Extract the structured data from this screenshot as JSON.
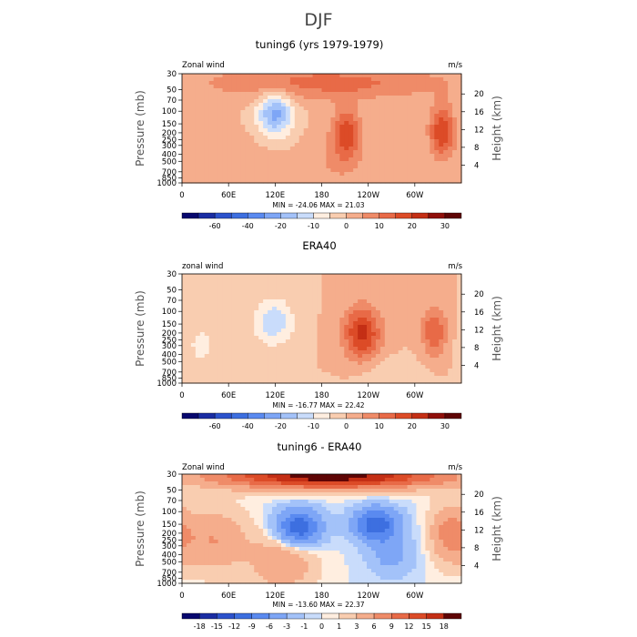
{
  "figure": {
    "title": "DJF"
  },
  "chart_data": [
    {
      "type": "heatmap",
      "title": "tuning6 (yrs 1979-1979)",
      "left_label": "Zonal wind",
      "right_label": "m/s",
      "xlabel": "",
      "ylabel": "Pressure (mb)",
      "ylabel_right": "Height (km)",
      "x_ticks": [
        "0",
        "60E",
        "120E",
        "180",
        "120W",
        "60W"
      ],
      "x_tick_lon": [
        0,
        60,
        120,
        180,
        240,
        300
      ],
      "xlim": [
        0,
        360
      ],
      "y_ticks": [
        "30",
        "50",
        "70",
        "100",
        "150",
        "200",
        "250",
        "300",
        "400",
        "500",
        "700",
        "850",
        "1000"
      ],
      "y_tick_hpa": [
        30,
        50,
        70,
        100,
        150,
        200,
        250,
        300,
        400,
        500,
        700,
        850,
        1000
      ],
      "ylim": [
        1000,
        30
      ],
      "y_right_ticks": [
        "20",
        "16",
        "12",
        "8",
        "4"
      ],
      "y_right_km": [
        20,
        16,
        12,
        8,
        4
      ],
      "stats": "MIN = -24.06   MAX =  21.03",
      "min": -24.06,
      "max": 21.03,
      "colorbar": {
        "labels": [
          "-60",
          "-40",
          "-20",
          "-10",
          "0",
          "10",
          "20",
          "30"
        ],
        "boundaries": [
          -70,
          -60,
          -50,
          -40,
          -30,
          -20,
          -15,
          -10,
          -5,
          0,
          5,
          10,
          15,
          20,
          25,
          30
        ],
        "labeled": [
          -60,
          -40,
          -20,
          -10,
          0,
          10,
          20,
          30
        ],
        "colors": [
          "#08086e",
          "#1a2da3",
          "#2c52cc",
          "#3d6fe0",
          "#5a8af0",
          "#7ea6f6",
          "#a3c2f9",
          "#c9dcfb",
          "#ffeee0",
          "#f9cdb0",
          "#f5ad8c",
          "#ef8b68",
          "#e86a47",
          "#dc4b27",
          "#c42f15",
          "#8f0f0a",
          "#5e0505"
        ]
      },
      "features": [
        {
          "lon": 120,
          "hpa": 110,
          "value": -22,
          "spread_lon": 22,
          "spread_lev": 0.7
        },
        {
          "lon": 212,
          "hpa": 200,
          "value": 18,
          "spread_lon": 18,
          "spread_lev": 0.8
        },
        {
          "lon": 335,
          "hpa": 190,
          "value": 20,
          "spread_lon": 16,
          "spread_lev": 0.8
        },
        {
          "lon": 185,
          "hpa": 40,
          "value": 12,
          "spread_lon": 160,
          "spread_lev": 0.55
        },
        {
          "lon": 60,
          "hpa": 600,
          "value": 4,
          "spread_lon": 60,
          "spread_lev": 1.0
        },
        {
          "lon": 200,
          "hpa": 500,
          "value": 5,
          "spread_lon": 40,
          "spread_lev": 0.9
        }
      ]
    },
    {
      "type": "heatmap",
      "title": "ERA40",
      "left_label": "zonal wind",
      "right_label": "m/s",
      "xlabel": "",
      "ylabel": "Pressure (mb)",
      "ylabel_right": "Height (km)",
      "x_ticks": [
        "0",
        "60E",
        "120E",
        "180",
        "120W",
        "60W"
      ],
      "x_tick_lon": [
        0,
        60,
        120,
        180,
        240,
        300
      ],
      "xlim": [
        0,
        360
      ],
      "y_ticks": [
        "30",
        "50",
        "70",
        "100",
        "150",
        "200",
        "250",
        "300",
        "400",
        "500",
        "700",
        "850",
        "1000"
      ],
      "y_tick_hpa": [
        30,
        50,
        70,
        100,
        150,
        200,
        250,
        300,
        400,
        500,
        700,
        850,
        1000
      ],
      "ylim": [
        1000,
        30
      ],
      "y_right_ticks": [
        "20",
        "16",
        "12",
        "8",
        "4"
      ],
      "y_right_km": [
        20,
        16,
        12,
        8,
        4
      ],
      "stats": "MIN = -16.77   MAX =  22.42",
      "min": -16.77,
      "max": 22.42,
      "colorbar": {
        "labels": [
          "-60",
          "-40",
          "-20",
          "-10",
          "0",
          "10",
          "20",
          "30"
        ],
        "boundaries": [
          -70,
          -60,
          -50,
          -40,
          -30,
          -20,
          -15,
          -10,
          -5,
          0,
          5,
          10,
          15,
          20,
          25,
          30
        ],
        "labeled": [
          -60,
          -40,
          -20,
          -10,
          0,
          10,
          20,
          30
        ],
        "colors": [
          "#08086e",
          "#1a2da3",
          "#2c52cc",
          "#3d6fe0",
          "#5a8af0",
          "#7ea6f6",
          "#a3c2f9",
          "#c9dcfb",
          "#ffeee0",
          "#f9cdb0",
          "#f5ad8c",
          "#ef8b68",
          "#e86a47",
          "#dc4b27",
          "#c42f15",
          "#8f0f0a",
          "#5e0505"
        ]
      },
      "features": [
        {
          "lon": 118,
          "hpa": 140,
          "value": -14,
          "spread_lon": 26,
          "spread_lev": 0.75
        },
        {
          "lon": 232,
          "hpa": 200,
          "value": 22,
          "spread_lon": 24,
          "spread_lev": 0.85
        },
        {
          "lon": 325,
          "hpa": 190,
          "value": 15,
          "spread_lon": 16,
          "spread_lev": 0.8
        },
        {
          "lon": 25,
          "hpa": 300,
          "value": -6,
          "spread_lon": 25,
          "spread_lev": 0.9
        },
        {
          "lon": 270,
          "hpa": 800,
          "value": -5,
          "spread_lon": 40,
          "spread_lev": 0.5
        }
      ]
    },
    {
      "type": "heatmap",
      "title": "tuning6 - ERA40",
      "left_label": "Zonal wind",
      "right_label": "m/s",
      "xlabel": "",
      "ylabel": "Pressure (mb)",
      "ylabel_right": "Height (km)",
      "x_ticks": [
        "0",
        "60E",
        "120E",
        "180",
        "120W",
        "60W"
      ],
      "x_tick_lon": [
        0,
        60,
        120,
        180,
        240,
        300
      ],
      "xlim": [
        0,
        360
      ],
      "y_ticks": [
        "30",
        "50",
        "70",
        "100",
        "150",
        "200",
        "250",
        "300",
        "400",
        "500",
        "700",
        "850",
        "1000"
      ],
      "y_tick_hpa": [
        30,
        50,
        70,
        100,
        150,
        200,
        250,
        300,
        400,
        500,
        700,
        850,
        1000
      ],
      "ylim": [
        1000,
        30
      ],
      "y_right_ticks": [
        "20",
        "16",
        "12",
        "8",
        "4"
      ],
      "y_right_km": [
        20,
        16,
        12,
        8,
        4
      ],
      "stats": "MIN = -13.60   MAX =  22.37",
      "min": -13.6,
      "max": 22.37,
      "colorbar": {
        "labels": [
          "-18",
          "-15",
          "-12",
          "-9",
          "-6",
          "-3",
          "-1",
          "0",
          "1",
          "3",
          "6",
          "9",
          "12",
          "15",
          "18"
        ],
        "boundaries": [
          -18,
          -15,
          -12,
          -9,
          -6,
          -3,
          -1,
          0,
          1,
          3,
          6,
          9,
          12,
          15,
          18
        ],
        "labeled": [
          -18,
          -15,
          -12,
          -9,
          -6,
          -3,
          -1,
          0,
          1,
          3,
          6,
          9,
          12,
          15,
          18
        ],
        "colors": [
          "#08086e",
          "#1a2da3",
          "#2c52cc",
          "#3d6fe0",
          "#5a8af0",
          "#7ea6f6",
          "#a3c2f9",
          "#c9dcfb",
          "#ffeee0",
          "#f9cdb0",
          "#f5ad8c",
          "#ef8b68",
          "#e86a47",
          "#dc4b27",
          "#c42f15",
          "#5e0505"
        ]
      },
      "features": [
        {
          "lon": 190,
          "hpa": 32,
          "value": 20,
          "spread_lon": 150,
          "spread_lev": 0.4
        },
        {
          "lon": 150,
          "hpa": 170,
          "value": -12,
          "spread_lon": 30,
          "spread_lev": 0.6
        },
        {
          "lon": 250,
          "hpa": 150,
          "value": -11,
          "spread_lon": 30,
          "spread_lev": 0.55
        },
        {
          "lon": 40,
          "hpa": 250,
          "value": 6,
          "spread_lon": 45,
          "spread_lev": 1.0
        },
        {
          "lon": 345,
          "hpa": 200,
          "value": 7,
          "spread_lon": 25,
          "spread_lev": 0.9
        },
        {
          "lon": 130,
          "hpa": 500,
          "value": 6,
          "spread_lon": 40,
          "spread_lev": 0.9
        },
        {
          "lon": 270,
          "hpa": 400,
          "value": -4,
          "spread_lon": 30,
          "spread_lev": 0.7
        }
      ]
    }
  ]
}
